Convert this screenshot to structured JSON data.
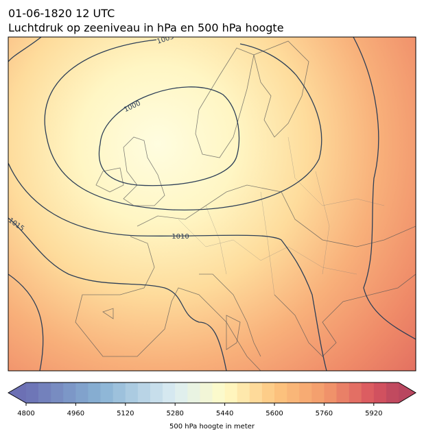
{
  "header": {
    "title": "01-06-1820 12 UTC",
    "subtitle": "Luchtdruk op zeeniveau in hPa en 500 hPa hoogte"
  },
  "contour_labels": [
    "1005",
    "1000",
    "1010",
    "1015"
  ],
  "colorbar": {
    "label": "500 hPa hoogte in meter",
    "min": 4800,
    "max": 6000,
    "step": 40,
    "ticks": [
      4800,
      4960,
      5120,
      5280,
      5440,
      5600,
      5760,
      5920
    ],
    "colors": [
      [
        4800,
        "#6c70b4"
      ],
      [
        5040,
        "#88b2d4"
      ],
      [
        5280,
        "#dcedf3"
      ],
      [
        5440,
        "#fffcc6"
      ],
      [
        5600,
        "#fdc680"
      ],
      [
        5760,
        "#f39b6b"
      ],
      [
        5920,
        "#d9545f"
      ],
      [
        6000,
        "#b9465f"
      ]
    ]
  }
}
